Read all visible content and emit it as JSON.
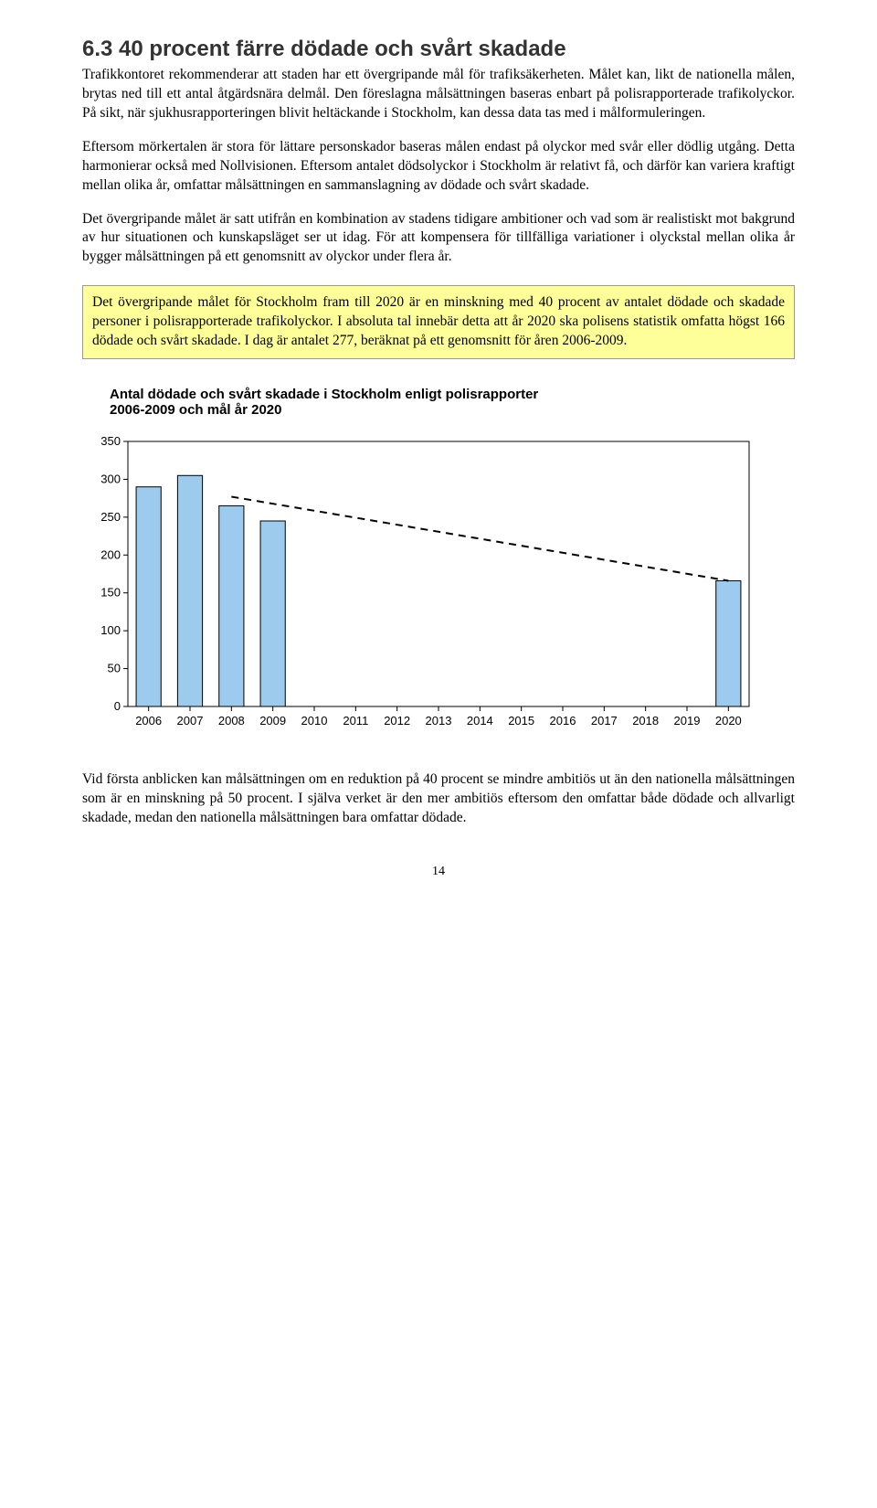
{
  "heading": "6.3 40 procent färre dödade och svårt skadade",
  "para1": "Trafikkontoret rekommenderar att staden har ett övergripande mål för trafiksäkerheten. Målet kan, likt de nationella målen, brytas ned till ett antal åtgärdsnära delmål. Den föreslagna målsättningen baseras enbart på polisrapporterade trafikolyckor. På sikt, när sjukhusrapporteringen blivit heltäckande i Stockholm, kan dessa data tas med i målformuleringen.",
  "para2": "Eftersom mörkertalen är stora för lättare personskador baseras målen endast på olyckor med svår eller dödlig utgång. Detta harmonierar också med Nollvisionen. Eftersom antalet dödsolyckor i Stockholm är relativt få, och därför kan variera kraftigt mellan olika år, omfattar målsättningen en sammanslagning av dödade och svårt skadade.",
  "para3": "Det övergripande målet är satt utifrån en kombination av stadens tidigare ambitioner och vad som är realistiskt mot bakgrund av hur situationen och kunskapsläget ser ut idag. För att kompensera för tillfälliga variationer i olyckstal mellan olika år bygger målsättningen på ett genomsnitt av olyckor under flera år.",
  "highlight": "Det övergripande målet för Stockholm fram till 2020 är en minskning med 40 procent av antalet dödade och skadade personer i polisrapporterade trafikolyckor. I absoluta tal innebär detta att år 2020 ska polisens statistik omfatta högst 166 dödade och svårt skadade. I dag är antalet 277, beräknat på ett genomsnitt för åren 2006-2009.",
  "chart": {
    "title_line1": "Antal dödade och svårt skadade i Stockholm enligt polisrapporter",
    "title_line2": "2006-2009 och mål år 2020",
    "type": "bar",
    "categories": [
      "2006",
      "2007",
      "2008",
      "2009",
      "2010",
      "2011",
      "2012",
      "2013",
      "2014",
      "2015",
      "2016",
      "2017",
      "2018",
      "2019",
      "2020"
    ],
    "values": [
      290,
      305,
      265,
      245,
      null,
      null,
      null,
      null,
      null,
      null,
      null,
      null,
      null,
      null,
      166
    ],
    "ylim": [
      0,
      350
    ],
    "ytick_step": 50,
    "yticks": [
      "0",
      "50",
      "100",
      "150",
      "200",
      "250",
      "300",
      "350"
    ],
    "bar_fill": "#9ccbee",
    "bar_stroke": "#000000",
    "background": "#ffffff",
    "axis_color": "#000000",
    "tick_color": "#000000",
    "font_family": "Arial",
    "label_fontsize": 13,
    "trend_start_value": 277,
    "trend_end_value": 166,
    "trend_start_x": 2.0,
    "trend_end_x": 14,
    "trend_color": "#000000",
    "trend_dash": "8,6",
    "trend_width": 2
  },
  "para4": "Vid första anblicken kan målsättningen om en reduktion på 40 procent se mindre ambitiös ut än den nationella målsättningen som är en minskning på 50 procent. I själva verket är den mer ambitiös eftersom den omfattar både dödade och allvarligt skadade, medan den nationella målsättningen bara omfattar dödade.",
  "page_number": "14"
}
